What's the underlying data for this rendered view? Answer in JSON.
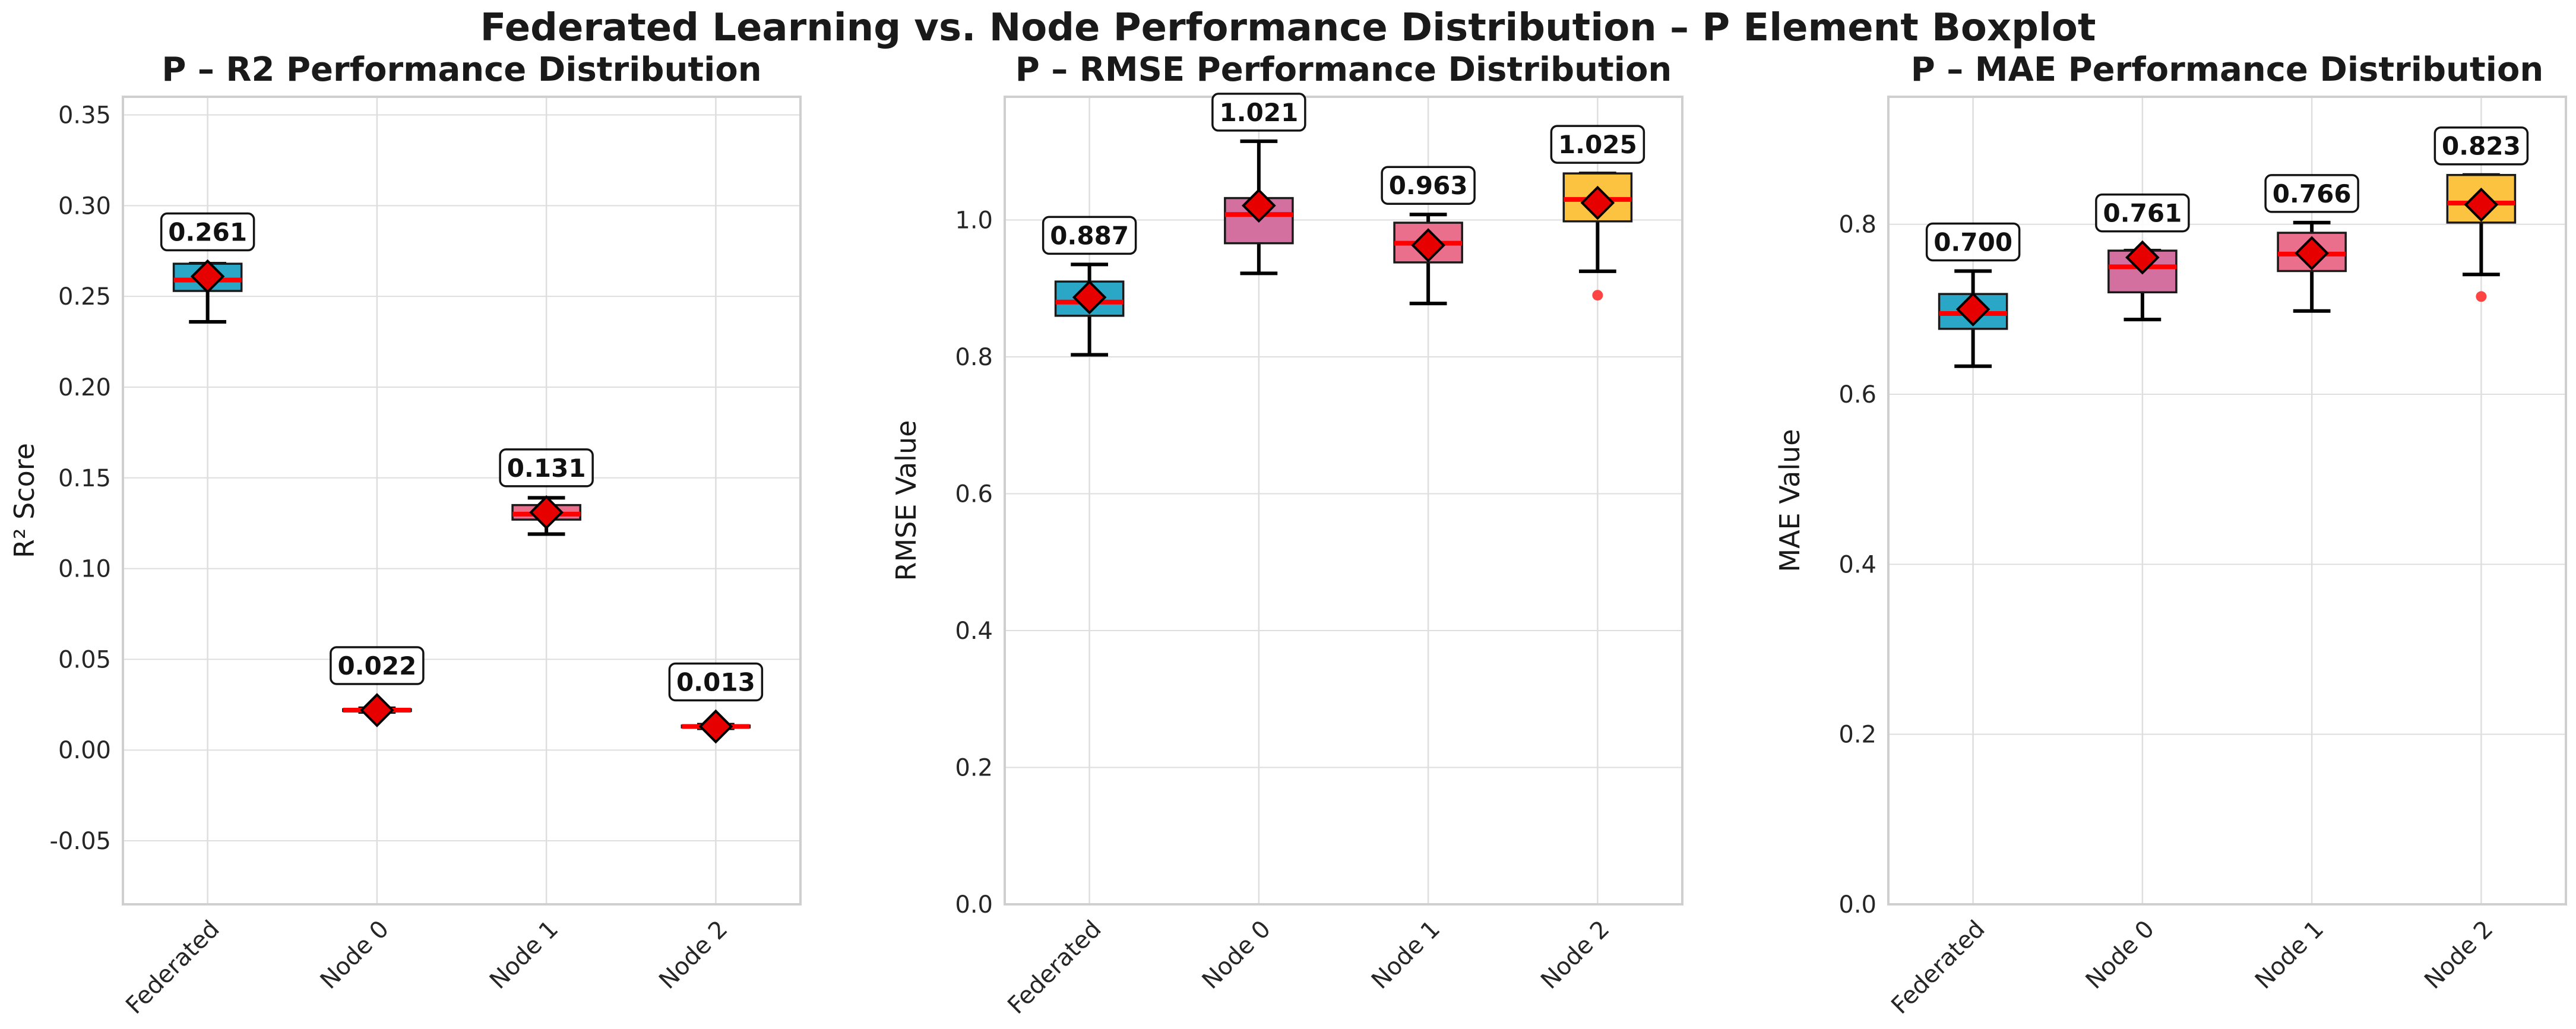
{
  "suptitle": "Federated Learning vs. Node Performance Distribution – P Element Boxplot",
  "colors": {
    "federated": "#2aa7c6",
    "node0": "#d3709f",
    "node1": "#ea6f8c",
    "node2": "#fbc33f",
    "median": "#ff0000",
    "mean_marker": "#e60000",
    "outlier": "#ff4444",
    "grid": "#dedede",
    "frame": "#cfcfcf"
  },
  "chart_data": [
    {
      "type": "boxplot",
      "title": "P – R2 Performance Distribution",
      "xlabel": "",
      "ylabel": "R² Score",
      "ylim": [
        -0.085,
        0.36
      ],
      "yticks": [
        -0.05,
        0.0,
        0.05,
        0.1,
        0.15,
        0.2,
        0.25,
        0.3,
        0.35
      ],
      "tick_decimals": 2,
      "categories": [
        "Federated",
        "Node 0",
        "Node 1",
        "Node 2"
      ],
      "boxes": [
        {
          "whisker_low": 0.236,
          "q1": 0.253,
          "median": 0.259,
          "q3": 0.268,
          "whisker_high": 0.268,
          "mean": 0.261,
          "outliers": []
        },
        {
          "whisker_low": 0.021,
          "q1": 0.0215,
          "median": 0.022,
          "q3": 0.0225,
          "whisker_high": 0.023,
          "mean": 0.022,
          "outliers": []
        },
        {
          "whisker_low": 0.119,
          "q1": 0.127,
          "median": 0.13,
          "q3": 0.135,
          "whisker_high": 0.139,
          "mean": 0.131,
          "outliers": []
        },
        {
          "whisker_low": 0.012,
          "q1": 0.0125,
          "median": 0.013,
          "q3": 0.0135,
          "whisker_high": 0.014,
          "mean": 0.013,
          "outliers": []
        }
      ],
      "mean_labels": [
        "0.261",
        "0.022",
        "0.131",
        "0.013"
      ]
    },
    {
      "type": "boxplot",
      "title": "P – RMSE Performance Distribution",
      "xlabel": "",
      "ylabel": "RMSE Value",
      "ylim": [
        0.0,
        1.18
      ],
      "yticks": [
        0.0,
        0.2,
        0.4,
        0.6,
        0.8,
        1.0
      ],
      "tick_decimals": 1,
      "categories": [
        "Federated",
        "Node 0",
        "Node 1",
        "Node 2"
      ],
      "boxes": [
        {
          "whisker_low": 0.803,
          "q1": 0.86,
          "median": 0.88,
          "q3": 0.91,
          "whisker_high": 0.935,
          "mean": 0.887,
          "outliers": []
        },
        {
          "whisker_low": 0.922,
          "q1": 0.966,
          "median": 1.008,
          "q3": 1.032,
          "whisker_high": 1.115,
          "mean": 1.021,
          "outliers": []
        },
        {
          "whisker_low": 0.878,
          "q1": 0.938,
          "median": 0.966,
          "q3": 0.996,
          "whisker_high": 1.008,
          "mean": 0.963,
          "outliers": []
        },
        {
          "whisker_low": 0.925,
          "q1": 0.998,
          "median": 1.03,
          "q3": 1.068,
          "whisker_high": 1.068,
          "mean": 1.025,
          "outliers": [
            0.89
          ]
        }
      ],
      "mean_labels": [
        "0.887",
        "1.021",
        "0.963",
        "1.025"
      ]
    },
    {
      "type": "boxplot",
      "title": "P – MAE Performance Distribution",
      "xlabel": "",
      "ylabel": "MAE Value",
      "ylim": [
        0.0,
        0.95
      ],
      "yticks": [
        0.0,
        0.2,
        0.4,
        0.6,
        0.8
      ],
      "tick_decimals": 1,
      "categories": [
        "Federated",
        "Node 0",
        "Node 1",
        "Node 2"
      ],
      "boxes": [
        {
          "whisker_low": 0.633,
          "q1": 0.677,
          "median": 0.695,
          "q3": 0.718,
          "whisker_high": 0.745,
          "mean": 0.7,
          "outliers": []
        },
        {
          "whisker_low": 0.688,
          "q1": 0.72,
          "median": 0.75,
          "q3": 0.769,
          "whisker_high": 0.769,
          "mean": 0.761,
          "outliers": []
        },
        {
          "whisker_low": 0.698,
          "q1": 0.745,
          "median": 0.765,
          "q3": 0.79,
          "whisker_high": 0.802,
          "mean": 0.766,
          "outliers": []
        },
        {
          "whisker_low": 0.741,
          "q1": 0.802,
          "median": 0.825,
          "q3": 0.858,
          "whisker_high": 0.858,
          "mean": 0.823,
          "outliers": [
            0.715
          ]
        }
      ],
      "mean_labels": [
        "0.700",
        "0.761",
        "0.766",
        "0.823"
      ]
    }
  ]
}
